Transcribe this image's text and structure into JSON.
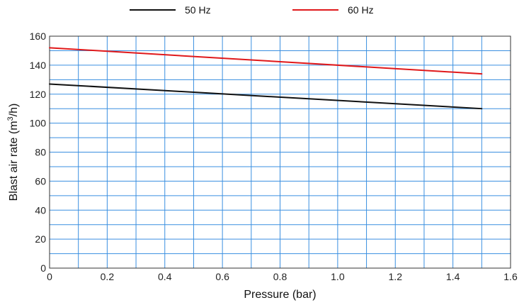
{
  "chart_data": {
    "type": "line",
    "title": "",
    "xlabel": "Pressure (bar)",
    "ylabel_prefix": "Blast air rate (m",
    "ylabel_sup": "3",
    "ylabel_suffix": "/h)",
    "xlim": [
      0,
      1.6
    ],
    "ylim": [
      0,
      160
    ],
    "x_ticks": [
      {
        "value": 0,
        "label": "0"
      },
      {
        "value": 0.2,
        "label": "0.2"
      },
      {
        "value": 0.4,
        "label": "0.4"
      },
      {
        "value": 0.6,
        "label": "0.6"
      },
      {
        "value": 0.8,
        "label": "0.8"
      },
      {
        "value": 1.0,
        "label": "1.0"
      },
      {
        "value": 1.2,
        "label": "1.2"
      },
      {
        "value": 1.4,
        "label": "1.4"
      },
      {
        "value": 1.6,
        "label": "1.6"
      }
    ],
    "y_ticks": [
      {
        "value": 0,
        "label": "0"
      },
      {
        "value": 20,
        "label": "20"
      },
      {
        "value": 40,
        "label": "40"
      },
      {
        "value": 60,
        "label": "60"
      },
      {
        "value": 80,
        "label": "80"
      },
      {
        "value": 100,
        "label": "100"
      },
      {
        "value": 120,
        "label": "120"
      },
      {
        "value": 140,
        "label": "140"
      },
      {
        "value": 160,
        "label": "160"
      }
    ],
    "x_grid_step": 0.1,
    "y_grid_step": 10,
    "grid": true,
    "grid_color": "#3a8fe0",
    "legend_position": "top",
    "series": [
      {
        "name": "50 Hz",
        "color": "#111111",
        "x": [
          0,
          1.5
        ],
        "y": [
          127,
          110
        ]
      },
      {
        "name": "60 Hz",
        "color": "#e0191b",
        "x": [
          0,
          1.5
        ],
        "y": [
          152,
          134
        ]
      }
    ]
  }
}
